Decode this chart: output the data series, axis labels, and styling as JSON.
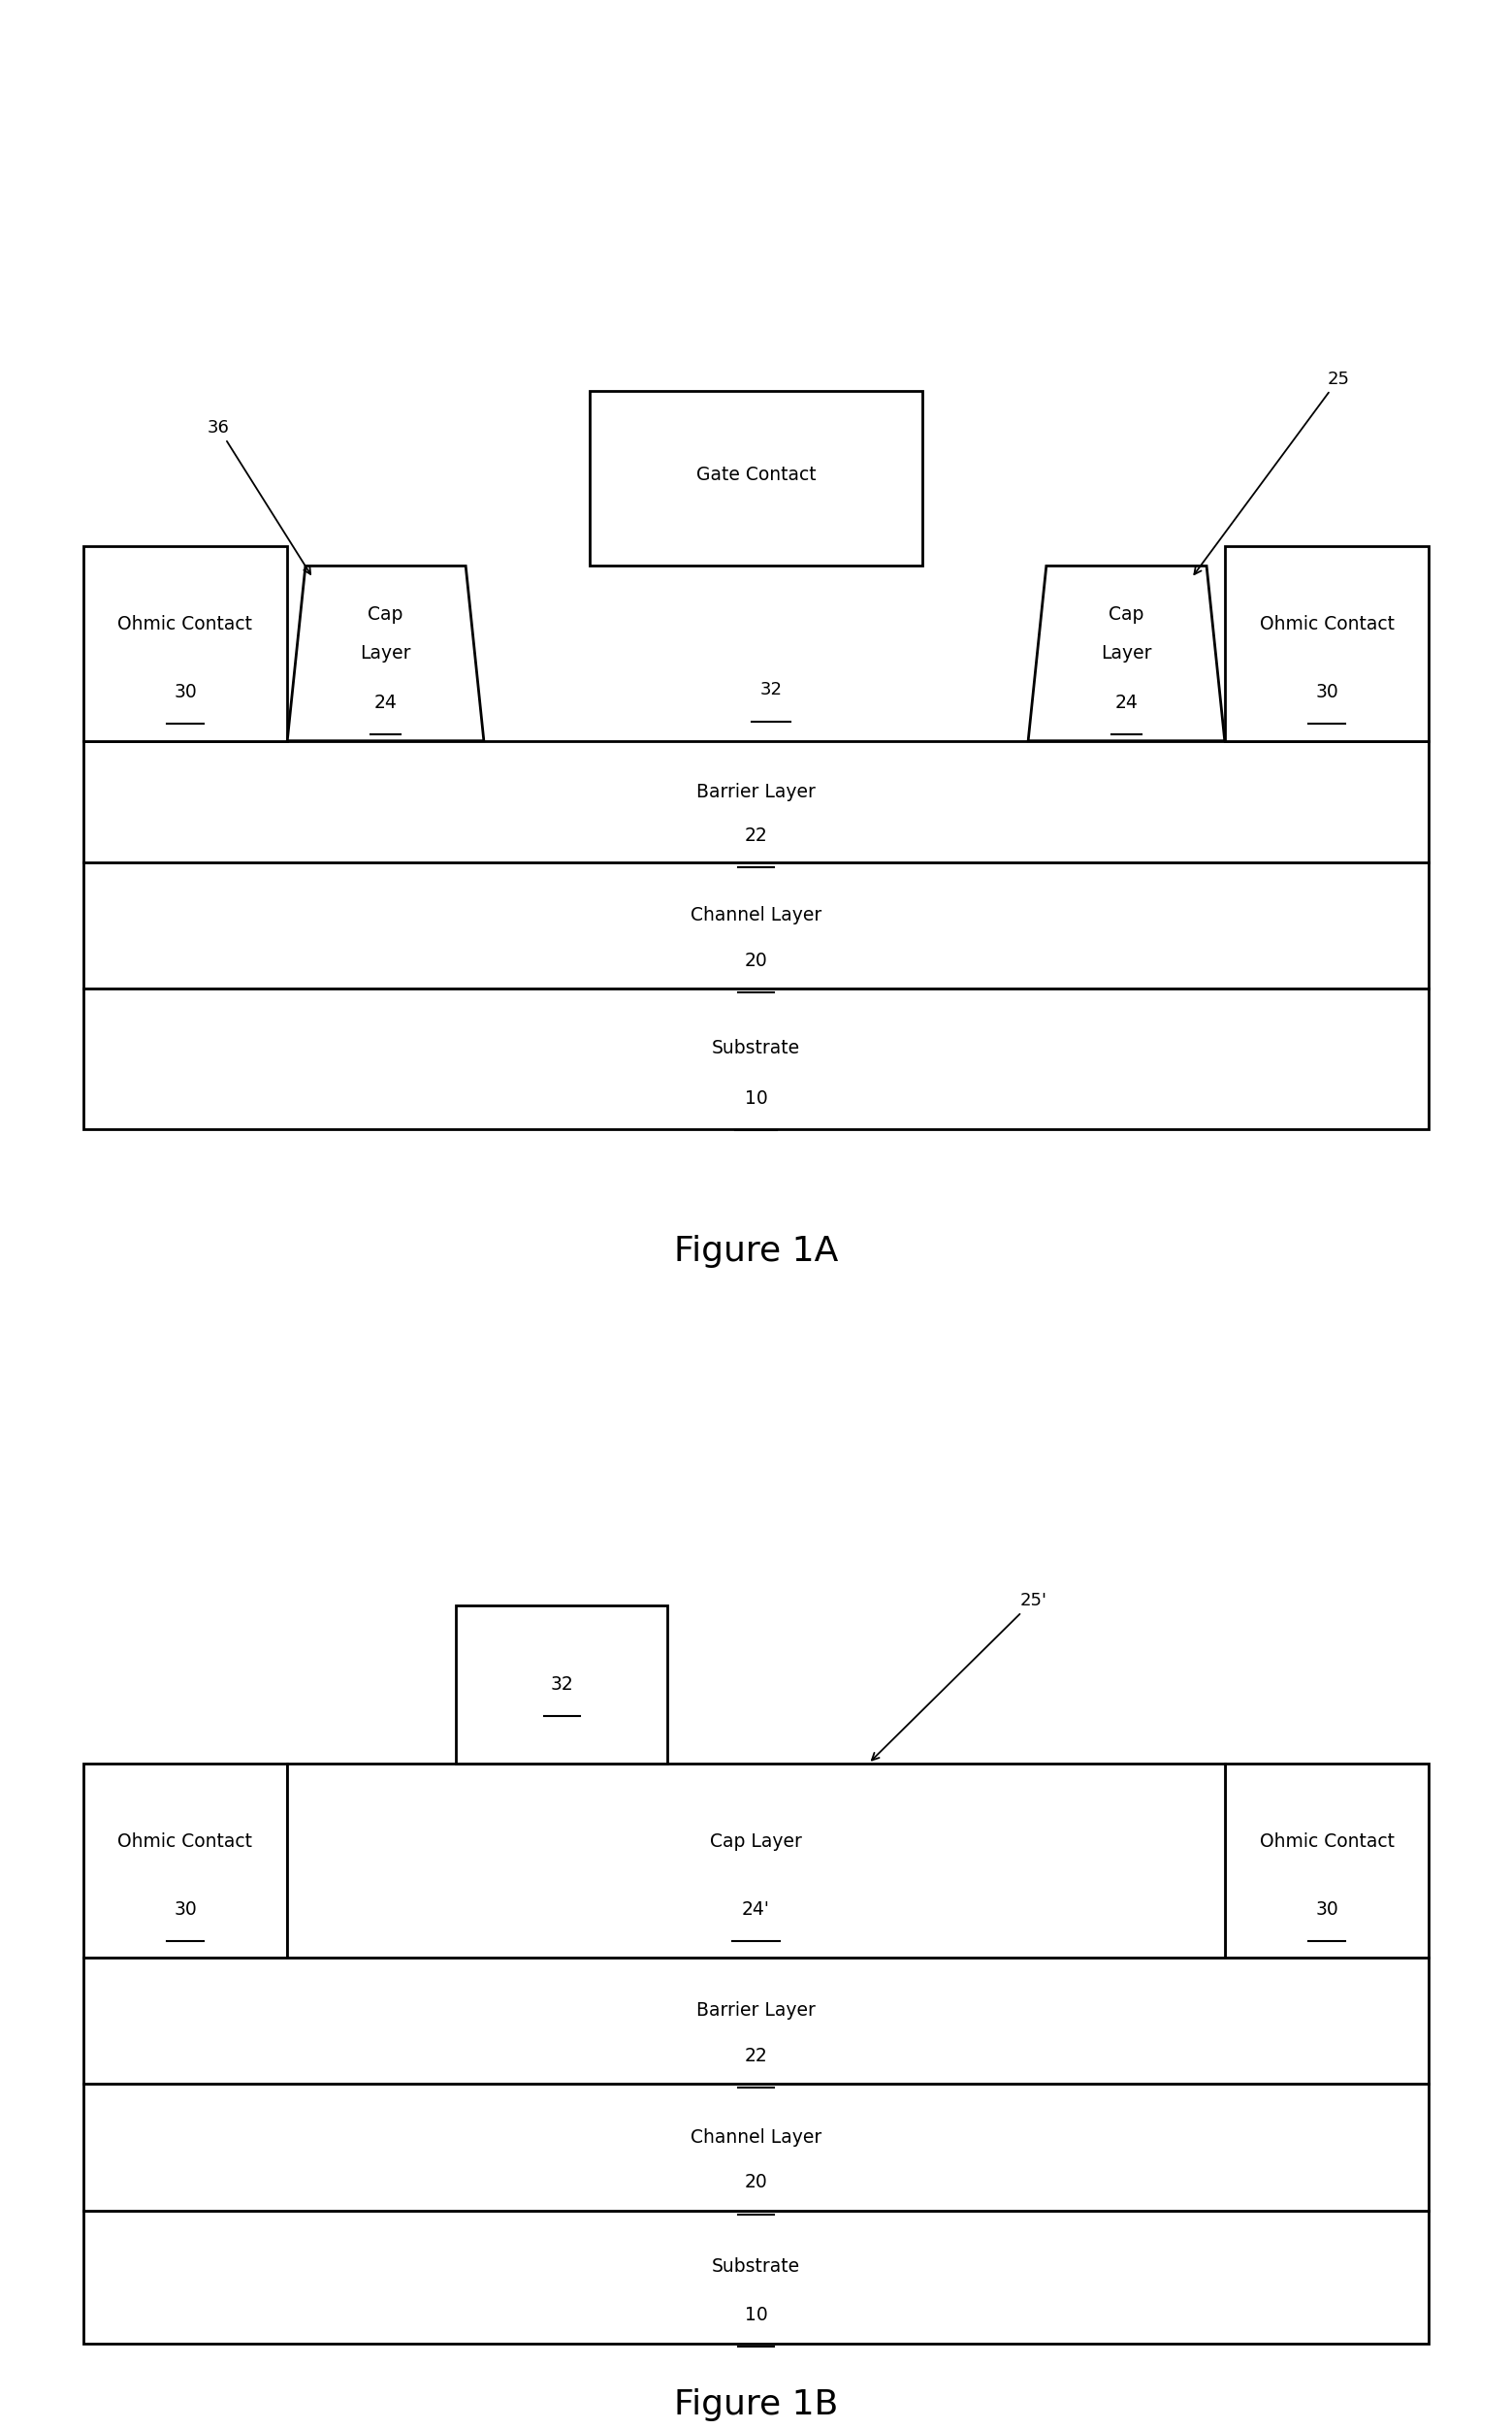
{
  "fig_width": 15.59,
  "fig_height": 25.04,
  "bg_color": "#ffffff",
  "lw": 2.0,
  "fig1A": {
    "title": "Figure 1A",
    "label_25": "25",
    "label_36": "36",
    "label_32": "32",
    "gate_label": "Gate Contact",
    "cap_left_line1": "Cap",
    "cap_left_line2": "Layer",
    "cap_left_num": "24",
    "cap_right_line1": "Cap",
    "cap_right_line2": "Layer",
    "cap_right_num": "24",
    "ohmic_left_label": "Ohmic Contact",
    "ohmic_left_num": "30",
    "ohmic_right_label": "Ohmic Contact",
    "ohmic_right_num": "30",
    "barrier_label": "Barrier Layer",
    "barrier_num": "22",
    "channel_label": "Channel Layer",
    "channel_num": "20",
    "substrate_label": "Substrate",
    "substrate_num": "10"
  },
  "fig1B": {
    "title": "Figure 1B",
    "label_25": "25'",
    "label_32": "32",
    "ohmic_left_label": "Ohmic Contact",
    "ohmic_left_num": "30",
    "ohmic_right_label": "Ohmic Contact",
    "ohmic_right_num": "30",
    "cap_label": "Cap Layer",
    "cap_num": "24'",
    "barrier_label": "Barrier Layer",
    "barrier_num": "22",
    "channel_label": "Channel Layer",
    "channel_num": "20",
    "substrate_label": "Substrate",
    "substrate_num": "10"
  }
}
